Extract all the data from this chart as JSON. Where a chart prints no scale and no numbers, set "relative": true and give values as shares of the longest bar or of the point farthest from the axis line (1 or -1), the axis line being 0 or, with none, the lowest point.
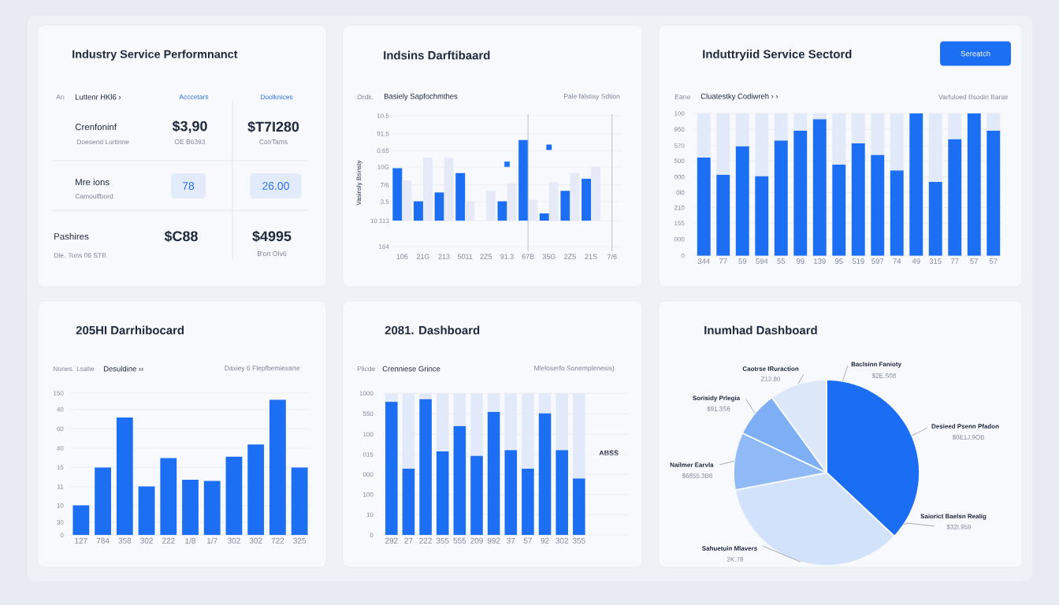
{
  "chart_data": [
    {
      "type": "other",
      "title": "Industry Service Performnanct",
      "annotations": [
        "Arı",
        "Luttenr HKl6 ›",
        "Acccetars",
        "Doolknices",
        "Crenfoninf",
        "Doesend Lurtinne",
        "$3,90",
        "OE B6393",
        "$T7I280",
        "CoIrTams",
        "Mre ions",
        "Camoulfbord",
        "78",
        "26.00",
        "Pashires",
        "Dle. Tons 06 STB",
        "$C88",
        "$4995",
        "B'ort OIv6"
      ]
    },
    {
      "type": "bar",
      "relative": true,
      "title": "Indsins Darftibaard",
      "subtitle": "Basiely Sapfochmthes",
      "ylabel": "Vasinsly Bsinsty",
      "annotations": [
        "Ordk.",
        "Pale falstisy Sdtion",
        "10.5",
        "91.5",
        "0.65",
        "10G",
        "7/6",
        "3.5",
        "10.113",
        "164"
      ],
      "categories": [
        "106",
        "21G",
        "213",
        "5011",
        "2Z5",
        "91.3",
        "67B",
        "35G",
        "2Z5",
        "21S",
        "7/6"
      ],
      "grid": "y",
      "series": [
        {
          "color": "#1c6ef2",
          "values": [
            0.65,
            0.24,
            0.35,
            0.59,
            null,
            0.24,
            1,
            0.09,
            0.37,
            0.52,
            null
          ]
        },
        {
          "color": "#e5eaf6",
          "values": [
            0.5,
            0.78,
            0.78,
            0.24,
            0.37,
            0.46,
            0.26,
            0.48,
            0.59,
            0.67,
            null
          ]
        },
        {
          "type": "scatter",
          "marker": "square",
          "color": "#1c6ef2",
          "x": [
            "91.3",
            "35G"
          ],
          "values": [
            0.7,
            0.91
          ]
        }
      ],
      "ref_lines": [
        {
          "axis": "x",
          "value": "67B",
          "color": "#b9bec8"
        },
        {
          "axis": "x",
          "value": "7/6",
          "color": "#b9bec8"
        }
      ]
    },
    {
      "type": "bar",
      "stacked": true,
      "relative": true,
      "title": "Induttryiid Service Sectord",
      "subtitle": "Cluatestky Codiwreh › ›",
      "annotations": [
        "Sereatch",
        "Earıe",
        "Varfuloed Bsodin Barair",
        "100",
        "950",
        "570",
        "500",
        "000",
        "0l0",
        "210",
        "155",
        "000",
        "0"
      ],
      "categories": [
        "344",
        "77",
        "59",
        "594",
        "55",
        "99",
        "139",
        "95",
        "519",
        "597",
        "74",
        "49",
        "315",
        "77",
        "57",
        "57"
      ],
      "grid": "y",
      "series": [
        {
          "color": "#1c6ef2",
          "values": [
            0.69,
            0.57,
            0.77,
            0.56,
            0.81,
            0.88,
            0.96,
            0.64,
            0.79,
            0.71,
            0.6,
            1,
            0.52,
            0.82,
            1,
            0.88
          ]
        },
        {
          "color": "#e2e9f8",
          "values": [
            0.31,
            0.43,
            0.23,
            0.44,
            0.19,
            0.12,
            0.04,
            0.36,
            0.21,
            0.29,
            0.4,
            null,
            0.48,
            0.18,
            null,
            0.12
          ]
        }
      ]
    },
    {
      "type": "bar",
      "relative": true,
      "title": "205HI Darrhibocard",
      "subtitle": "Desuldine ››",
      "annotations": [
        "Nones. Lsatie",
        "Daxiey 6 Flepfbemiesarte",
        "150",
        "40",
        "60",
        "40",
        "15",
        "11",
        "10",
        "30",
        "0"
      ],
      "categories": [
        "127",
        "784",
        "358",
        "302",
        "222",
        "1/8",
        "1/7",
        "302",
        "302",
        "722",
        "325"
      ],
      "grid": "y",
      "color": "#1c6ef2",
      "values": [
        0.22,
        0.5,
        0.87,
        0.36,
        0.57,
        0.41,
        0.4,
        0.58,
        0.67,
        1,
        0.5
      ]
    },
    {
      "type": "bar",
      "stacked": true,
      "relative": true,
      "title": "2081. Dashboard",
      "subtitle": "Crenniese Grince",
      "annotations": [
        "Plicde",
        "Mleloserfo Sonemplenesis)",
        "ABSS",
        "1000",
        "550",
        "100",
        "015",
        "000",
        "100",
        "10",
        "0"
      ],
      "categories": [
        "292",
        "27",
        "222",
        "355",
        "555",
        "209",
        "992",
        "37",
        "57",
        "92",
        "302",
        "355"
      ],
      "grid": "y",
      "series": [
        {
          "color": "#1c6ef2",
          "values": [
            0.94,
            0.47,
            0.96,
            0.59,
            0.77,
            0.56,
            0.87,
            0.6,
            0.47,
            0.86,
            0.6,
            0.4
          ]
        },
        {
          "color": "#e2e9f8",
          "values": [
            0.06,
            0.53,
            0.04,
            0.41,
            0.23,
            0.44,
            0.13,
            0.4,
            0.53,
            0.14,
            0.4,
            0.6
          ]
        }
      ]
    },
    {
      "type": "pie",
      "title": "Inumhad Dashboard",
      "categories": [
        "Desieed Psenn Pfadon",
        "Sahuetuin Mlavers",
        "Nailmer Earvla",
        "Sorisidy Prlegia",
        "Caotrse IRuraction"
      ],
      "values": [
        37,
        35,
        10,
        8,
        10
      ],
      "colors": [
        "#1b6ef3",
        "#d3e2fb",
        "#8fbaf6",
        "#7eaef4",
        "#dce7fa"
      ],
      "annotations": [
        "$0E1J.9OB",
        "2K.78",
        "$6855.3B6",
        "$91.3S6",
        "Z12.80",
        "Baclsinn Fanioty",
        "$2E.S08",
        "Saiorict Baelsn Realig",
        "$32I.959"
      ]
    }
  ]
}
